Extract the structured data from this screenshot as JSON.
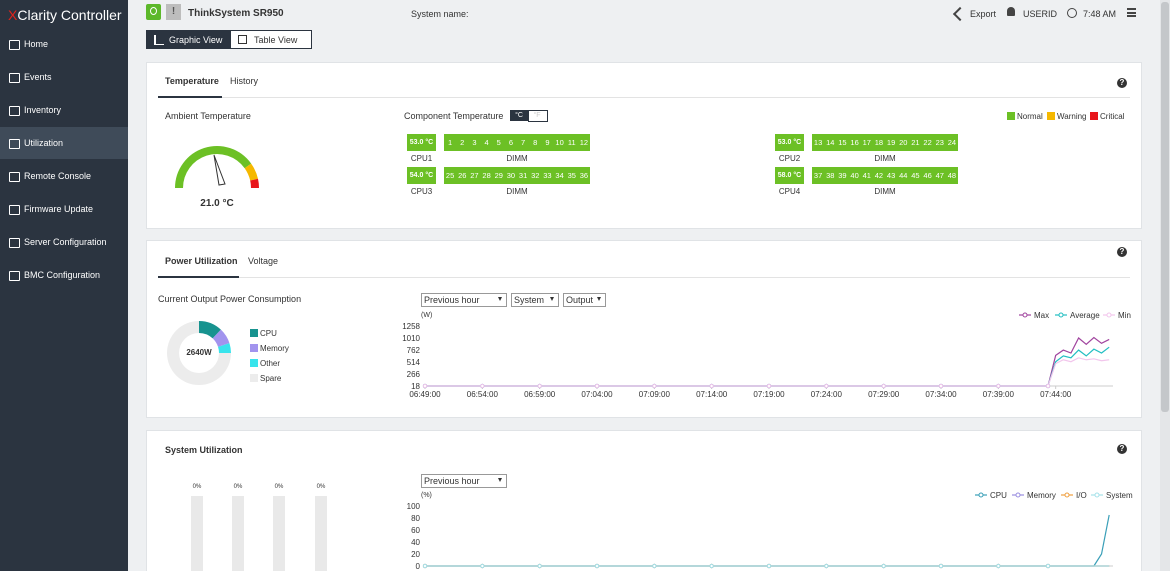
{
  "sidebar": {
    "brand_x": "X",
    "brand": "Clarity Controller",
    "items": [
      "Home",
      "Events",
      "Inventory",
      "Utilization",
      "Remote Console",
      "Firmware Update",
      "Server Configuration",
      "BMC Configuration"
    ]
  },
  "header": {
    "product": "ThinkSystem SR950",
    "system_name_label": "System name:",
    "export": "Export",
    "user": "USERID",
    "time": "7:48 AM"
  },
  "view_tabs": [
    "Graphic View",
    "Table View"
  ],
  "temperature_panel": {
    "tabs": [
      "Temperature",
      "History"
    ],
    "ambient_label": "Ambient Temperature",
    "ambient_value": "21.0 °C",
    "component_label": "Component Temperature",
    "units": [
      "°C",
      "°F"
    ],
    "legend": [
      {
        "name": "Normal",
        "color": "#6cc025"
      },
      {
        "name": "Warning",
        "color": "#f5b800"
      },
      {
        "name": "Critical",
        "color": "#e8161b"
      }
    ],
    "cpus": [
      {
        "name": "CPU1",
        "temp": "53.0 °C",
        "dimm_label": "DIMM",
        "dimms": [
          "1",
          "2",
          "3",
          "4",
          "5",
          "6",
          "7",
          "8",
          "9",
          "10",
          "11",
          "12"
        ]
      },
      {
        "name": "CPU2",
        "temp": "53.0 °C",
        "dimm_label": "DIMM",
        "dimms": [
          "13",
          "14",
          "15",
          "16",
          "17",
          "18",
          "19",
          "20",
          "21",
          "22",
          "23",
          "24"
        ]
      },
      {
        "name": "CPU3",
        "temp": "54.0 °C",
        "dimm_label": "DIMM",
        "dimms": [
          "25",
          "26",
          "27",
          "28",
          "29",
          "30",
          "31",
          "32",
          "33",
          "34",
          "35",
          "36"
        ]
      },
      {
        "name": "CPU4",
        "temp": "58.0 °C",
        "dimm_label": "DIMM",
        "dimms": [
          "37",
          "38",
          "39",
          "40",
          "41",
          "42",
          "43",
          "44",
          "45",
          "46",
          "47",
          "48"
        ]
      }
    ]
  },
  "power_panel": {
    "tabs": [
      "Power Utilization",
      "Voltage"
    ],
    "consumption_label": "Current Output Power Consumption",
    "dropdowns": [
      "Previous hour",
      "System",
      "Output"
    ],
    "donut": {
      "type": "pie",
      "center_label": "2640W",
      "categories": [
        "CPU",
        "Memory",
        "Other",
        "Spare"
      ],
      "values": [
        12,
        8,
        5,
        75
      ],
      "colors": [
        "#17938f",
        "#a294ee",
        "#38e4ec",
        "#ececec"
      ]
    },
    "chart": {
      "type": "line",
      "unit": "(W)",
      "ylim": [
        18,
        1258
      ],
      "yticks": [
        18,
        266,
        514,
        762,
        1010,
        1258
      ],
      "xlim": [
        "06:49:00",
        "07:49:00"
      ],
      "xticks": [
        "06:49:00",
        "06:54:00",
        "06:59:00",
        "07:04:00",
        "07:09:00",
        "07:14:00",
        "07:19:00",
        "07:24:00",
        "07:29:00",
        "07:34:00",
        "07:39:00",
        "07:44:00"
      ],
      "x": [
        "06:49:00",
        "06:54:00",
        "06:59:00",
        "07:04:00",
        "07:09:00",
        "07:14:00",
        "07:19:00",
        "07:24:00",
        "07:29:00",
        "07:34:00",
        "07:39:00",
        "07:43:20",
        "07:44:00",
        "07:44:40",
        "07:45:20",
        "07:46:00",
        "07:46:40",
        "07:47:20",
        "07:48:00",
        "07:48:40"
      ],
      "series": [
        {
          "name": "Max",
          "color": "#a0449e",
          "values": [
            18,
            18,
            18,
            18,
            18,
            18,
            18,
            18,
            18,
            18,
            18,
            18,
            650,
            760,
            700,
            1010,
            880,
            1020,
            900,
            980
          ]
        },
        {
          "name": "Average",
          "color": "#22bfc2",
          "values": [
            18,
            18,
            18,
            18,
            18,
            18,
            18,
            18,
            18,
            18,
            18,
            18,
            520,
            640,
            600,
            760,
            640,
            780,
            700,
            820
          ]
        },
        {
          "name": "Min",
          "color": "#f2c6ec",
          "values": [
            18,
            18,
            18,
            18,
            18,
            18,
            18,
            18,
            18,
            18,
            18,
            18,
            480,
            560,
            520,
            600,
            560,
            580,
            540,
            560
          ]
        }
      ]
    }
  },
  "system_panel": {
    "title": "System Utilization",
    "dropdown": "Previous hour",
    "bars": {
      "type": "bar",
      "ylim": [
        0,
        100
      ],
      "values": [
        0,
        0,
        0,
        0
      ],
      "value_labels": [
        "0%",
        "0%",
        "0%",
        "0%"
      ]
    },
    "chart": {
      "type": "line",
      "unit": "(%)",
      "ylim": [
        0,
        100
      ],
      "yticks": [
        0,
        20,
        40,
        60,
        80,
        100
      ],
      "xlim": [
        "06:49:00",
        "07:49:00"
      ],
      "x": [
        "06:49:00",
        "06:54:00",
        "06:59:00",
        "07:04:00",
        "07:09:00",
        "07:14:00",
        "07:19:00",
        "07:24:00",
        "07:29:00",
        "07:34:00",
        "07:39:00",
        "07:43:20",
        "07:44:00",
        "07:44:40",
        "07:45:20",
        "07:46:00",
        "07:46:40",
        "07:47:20",
        "07:48:00",
        "07:48:40"
      ],
      "series": [
        {
          "name": "CPU",
          "color": "#3a9fb8",
          "values": [
            0,
            0,
            0,
            0,
            0,
            0,
            0,
            0,
            0,
            0,
            0,
            0,
            0,
            0,
            0,
            0,
            0,
            0,
            20,
            85
          ]
        },
        {
          "name": "Memory",
          "color": "#9a8ee0",
          "values": [
            0,
            0,
            0,
            0,
            0,
            0,
            0,
            0,
            0,
            0,
            0,
            0,
            0,
            0,
            0,
            0,
            0,
            0,
            0,
            0
          ]
        },
        {
          "name": "I/O",
          "color": "#f0a040",
          "values": [
            0,
            0,
            0,
            0,
            0,
            0,
            0,
            0,
            0,
            0,
            0,
            0,
            0,
            0,
            0,
            0,
            0,
            0,
            0,
            0
          ]
        },
        {
          "name": "System",
          "color": "#a6e2ea",
          "values": [
            0,
            0,
            0,
            0,
            0,
            0,
            0,
            0,
            0,
            0,
            0,
            0,
            0,
            0,
            0,
            0,
            0,
            0,
            0,
            0
          ]
        }
      ]
    }
  }
}
